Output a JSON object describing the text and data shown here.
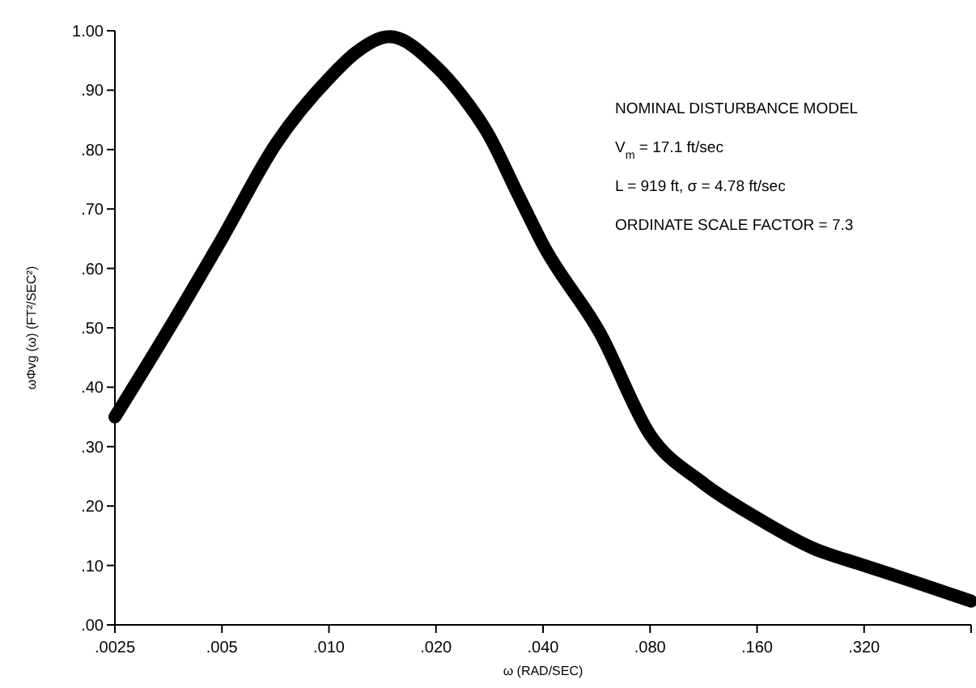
{
  "chart_data": {
    "type": "line",
    "xlabel": "ω (RAD/SEC)",
    "ylabel": "ωΦvg (ω) (FT²/SEC²)",
    "log": "x",
    "grid": false,
    "marker": "none",
    "line_style": "solid",
    "xlim": [
      0.0025,
      0.64
    ],
    "ylim": [
      0,
      1
    ],
    "xticks": [
      {
        "value": 0.0025,
        "label": ".0025"
      },
      {
        "value": 0.005,
        "label": ".005"
      },
      {
        "value": 0.01,
        "label": ".010"
      },
      {
        "value": 0.02,
        "label": ".020"
      },
      {
        "value": 0.04,
        "label": ".040"
      },
      {
        "value": 0.08,
        "label": ".080"
      },
      {
        "value": 0.16,
        "label": ".160"
      },
      {
        "value": 0.32,
        "label": ".320"
      },
      {
        "value": 0.64,
        "label": null
      }
    ],
    "yticks": [
      {
        "value": 0,
        "label": ".00"
      },
      {
        "value": 0.1,
        "label": ".10"
      },
      {
        "value": 0.2,
        "label": ".20"
      },
      {
        "value": 0.3,
        "label": ".30"
      },
      {
        "value": 0.4,
        "label": ".40"
      },
      {
        "value": 0.5,
        "label": ".50"
      },
      {
        "value": 0.6,
        "label": ".60"
      },
      {
        "value": 0.7,
        "label": ".70"
      },
      {
        "value": 0.8,
        "label": ".80"
      },
      {
        "value": 0.9,
        "label": ".90"
      },
      {
        "value": 1,
        "label": "1.00"
      }
    ],
    "x": [
      0.0025,
      0.0034,
      0.005,
      0.0071,
      0.01,
      0.012,
      0.0148,
      0.02,
      0.0237,
      0.0278,
      0.0343,
      0.04,
      0.058,
      0.08,
      0.112,
      0.16,
      0.228,
      0.32,
      0.455,
      0.64
    ],
    "series": [
      {
        "color": "#000000",
        "values": [
          0.35,
          0.48,
          0.65,
          0.81,
          0.92,
          0.965,
          0.99,
          0.94,
          0.89,
          0.83,
          0.72,
          0.64,
          0.49,
          0.32,
          0.24,
          0.18,
          0.13,
          0.1,
          0.07,
          0.04
        ]
      }
    ],
    "annotations": [
      "NOMINAL DISTURBANCE MODEL",
      "V$_{m}$ = 17.1 ft/sec",
      "L = 919 ft, σ = 4.78 ft/sec",
      "ORDINATE SCALE FACTOR = 7.3"
    ]
  }
}
